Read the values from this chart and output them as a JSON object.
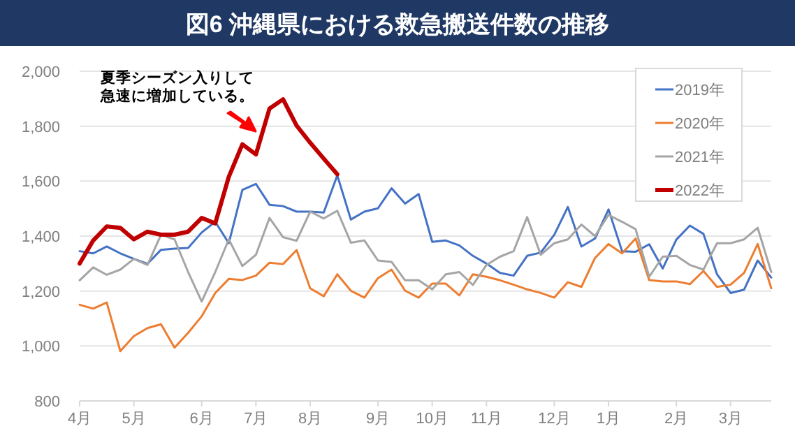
{
  "chart_data": {
    "type": "line",
    "title": "図6 沖縄県における救急搬送件数の推移",
    "categories": [
      "4月",
      null,
      null,
      null,
      "5月",
      null,
      null,
      null,
      null,
      "6月",
      null,
      null,
      null,
      "7月",
      null,
      null,
      null,
      "8月",
      null,
      null,
      null,
      null,
      "9月",
      null,
      null,
      null,
      "10月",
      null,
      null,
      null,
      "11月",
      null,
      null,
      null,
      null,
      "12月",
      null,
      null,
      null,
      "1月",
      null,
      null,
      null,
      null,
      "2月",
      null,
      null,
      null,
      "3月",
      null,
      null,
      null
    ],
    "ylim": [
      800,
      2000
    ],
    "yticks": [
      {
        "value": 800,
        "label": "800"
      },
      {
        "value": 1000,
        "label": "1,000"
      },
      {
        "value": 1200,
        "label": "1,200"
      },
      {
        "value": 1400,
        "label": "1,400"
      },
      {
        "value": 1600,
        "label": "1,600"
      },
      {
        "value": 1800,
        "label": "1,800"
      },
      {
        "value": 2000,
        "label": "2,000"
      }
    ],
    "grid": "y",
    "legend": "top right",
    "marker": "none",
    "line_style": "solid",
    "series": [
      {
        "name": "2019年",
        "color": "#4472c4",
        "values": [
          1345,
          1337,
          1362,
          1337,
          1317,
          1299,
          1350,
          1354,
          1357,
          1413,
          1452,
          1374,
          1568,
          1590,
          1514,
          1509,
          1489,
          1489,
          1486,
          1621,
          1460,
          1489,
          1501,
          1574,
          1518,
          1553,
          1379,
          1384,
          1366,
          1328,
          1300,
          1266,
          1256,
          1328,
          1340,
          1405,
          1506,
          1362,
          1391,
          1497,
          1345,
          1343,
          1370,
          1282,
          1387,
          1438,
          1408,
          1261,
          1193,
          1205,
          1311,
          1249
        ]
      },
      {
        "name": "2020年",
        "color": "#ed7d31",
        "values": [
          1150,
          1136,
          1158,
          981,
          1036,
          1065,
          1079,
          994,
          1048,
          1108,
          1193,
          1244,
          1240,
          1256,
          1303,
          1298,
          1349,
          1210,
          1181,
          1261,
          1201,
          1176,
          1247,
          1278,
          1201,
          1176,
          1227,
          1227,
          1184,
          1261,
          1252,
          1239,
          1223,
          1206,
          1193,
          1176,
          1232,
          1215,
          1320,
          1371,
          1337,
          1391,
          1240,
          1235,
          1235,
          1225,
          1273,
          1215,
          1223,
          1266,
          1371,
          1210
        ]
      },
      {
        "name": "2021年",
        "color": "#a5a5a5",
        "values": [
          1239,
          1286,
          1259,
          1278,
          1317,
          1295,
          1405,
          1388,
          1269,
          1162,
          1269,
          1388,
          1291,
          1332,
          1466,
          1396,
          1383,
          1489,
          1464,
          1492,
          1376,
          1384,
          1311,
          1306,
          1239,
          1239,
          1206,
          1261,
          1269,
          1222,
          1295,
          1325,
          1345,
          1469,
          1332,
          1374,
          1388,
          1442,
          1400,
          1477,
          1452,
          1425,
          1252,
          1325,
          1328,
          1295,
          1278,
          1374,
          1374,
          1388,
          1430,
          1269
        ]
      },
      {
        "name": "2022年",
        "color": "#c00000",
        "values": [
          1300,
          1384,
          1435,
          1430,
          1388,
          1416,
          1405,
          1405,
          1416,
          1466,
          1446,
          1616,
          1734,
          1697,
          1864,
          1898,
          1802,
          1740,
          1682,
          1625,
          null,
          null,
          null,
          null,
          null,
          null,
          null,
          null,
          null,
          null,
          null,
          null,
          null,
          null,
          null,
          null,
          null,
          null,
          null,
          null,
          null,
          null,
          null,
          null,
          null,
          null,
          null,
          null,
          null,
          null,
          null,
          null
        ]
      }
    ],
    "annotations": [
      "夏季シーズン入りして",
      "急速に増加している。"
    ]
  }
}
